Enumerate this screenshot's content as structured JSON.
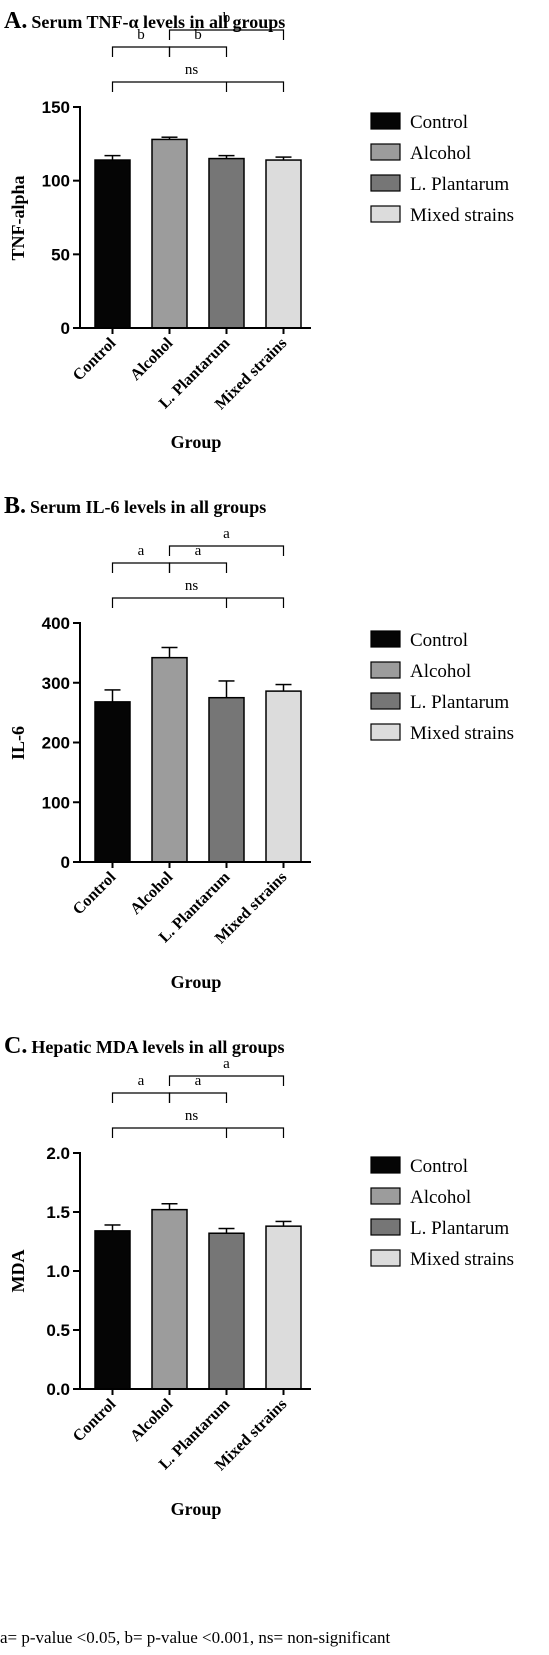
{
  "groups": [
    "Control",
    "Alcohol",
    "L. Plantarum",
    "Mixed strains"
  ],
  "colors": {
    "Control": "#050505",
    "Alcohol": "#9c9c9c",
    "L. Plantarum": "#767676",
    "Mixed strains": "#dcdcdc"
  },
  "chart_data": [
    {
      "type": "bar",
      "panel_letter": "A.",
      "title": "Serum TNF-α levels in all groups",
      "xlabel": "Group",
      "ylabel": "TNF-alpha",
      "categories": [
        "Control",
        "Alcohol",
        "L. Plantarum",
        "Mixed strains"
      ],
      "values": [
        114,
        128,
        115,
        114
      ],
      "errors": [
        3,
        1.5,
        2,
        2
      ],
      "ylim": [
        0,
        150
      ],
      "yticks": [
        0,
        50,
        100,
        150
      ],
      "tick_labels": [
        "0",
        "50",
        "100",
        "150"
      ],
      "legend": [
        "Control",
        "Alcohol",
        "L. Plantarum",
        "Mixed strains"
      ],
      "legend_position": "right",
      "brackets": [
        {
          "from": 0,
          "to": 1,
          "label": "b",
          "tier": 2
        },
        {
          "from": 1,
          "to": 2,
          "label": "b",
          "tier": 2
        },
        {
          "from": 1,
          "to": 3,
          "label": "b",
          "tier": 3
        },
        {
          "from": 0,
          "to": 3,
          "label": "ns",
          "tier": 1
        }
      ]
    },
    {
      "type": "bar",
      "panel_letter": "B.",
      "title": "Serum IL-6 levels in all groups",
      "xlabel": "Group",
      "ylabel": "IL-6",
      "categories": [
        "Control",
        "Alcohol",
        "L. Plantarum",
        "Mixed strains"
      ],
      "values": [
        268,
        342,
        275,
        286
      ],
      "errors": [
        20,
        17,
        28,
        11
      ],
      "ylim": [
        0,
        400
      ],
      "yticks": [
        0,
        100,
        200,
        300,
        400
      ],
      "tick_labels": [
        "0",
        "100",
        "200",
        "300",
        "400"
      ],
      "legend": [
        "Control",
        "Alcohol",
        "L. Plantarum",
        "Mixed strains"
      ],
      "legend_position": "right",
      "brackets": [
        {
          "from": 0,
          "to": 1,
          "label": "a",
          "tier": 2
        },
        {
          "from": 1,
          "to": 2,
          "label": "a",
          "tier": 2
        },
        {
          "from": 1,
          "to": 3,
          "label": "a",
          "tier": 3
        },
        {
          "from": 0,
          "to": 3,
          "label": "ns",
          "tier": 1
        }
      ]
    },
    {
      "type": "bar",
      "panel_letter": "C.",
      "title": "Hepatic MDA levels in all groups",
      "xlabel": "Group",
      "ylabel": "MDA",
      "categories": [
        "Control",
        "Alcohol",
        "L. Plantarum",
        "Mixed strains"
      ],
      "values": [
        1.34,
        1.52,
        1.32,
        1.38
      ],
      "errors": [
        0.05,
        0.05,
        0.04,
        0.04
      ],
      "ylim": [
        0,
        2.0
      ],
      "yticks": [
        0,
        0.5,
        1.0,
        1.5,
        2.0
      ],
      "tick_labels": [
        "0.0",
        "0.5",
        "1.0",
        "1.5",
        "2.0"
      ],
      "legend": [
        "Control",
        "Alcohol",
        "L. Plantarum",
        "Mixed strains"
      ],
      "legend_position": "right",
      "brackets": [
        {
          "from": 0,
          "to": 1,
          "label": "a",
          "tier": 2
        },
        {
          "from": 1,
          "to": 2,
          "label": "a",
          "tier": 2
        },
        {
          "from": 1,
          "to": 3,
          "label": "a",
          "tier": 3
        },
        {
          "from": 0,
          "to": 3,
          "label": "ns",
          "tier": 1
        }
      ]
    }
  ],
  "footnote": "a= p-value <0.05, b= p-value <0.001, ns= non-significant"
}
